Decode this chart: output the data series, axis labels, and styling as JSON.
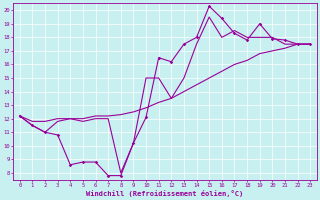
{
  "xlabel": "Windchill (Refroidissement éolien,°C)",
  "bg_color": "#c8f0f0",
  "line_color": "#990099",
  "xlim": [
    -0.5,
    23.5
  ],
  "ylim": [
    7.5,
    20.5
  ],
  "xticks": [
    0,
    1,
    2,
    3,
    4,
    5,
    6,
    7,
    8,
    9,
    10,
    11,
    12,
    13,
    14,
    15,
    16,
    17,
    18,
    19,
    20,
    21,
    22,
    23
  ],
  "yticks": [
    8,
    9,
    10,
    11,
    12,
    13,
    14,
    15,
    16,
    17,
    18,
    19,
    20
  ],
  "line_markers_x": [
    0,
    1,
    2,
    3,
    4,
    5,
    6,
    7,
    8,
    9,
    10,
    11,
    12,
    13,
    14,
    15,
    16,
    17,
    18,
    19,
    20,
    21,
    22,
    23
  ],
  "line_markers_y": [
    12.2,
    11.5,
    11.0,
    10.8,
    8.6,
    8.8,
    8.8,
    7.8,
    7.8,
    10.2,
    12.1,
    16.5,
    16.2,
    17.5,
    18.0,
    20.3,
    19.4,
    18.3,
    17.8,
    19.0,
    17.9,
    17.8,
    17.5,
    17.5
  ],
  "line_straight_x": [
    0,
    1,
    2,
    3,
    4,
    5,
    6,
    7,
    8,
    9,
    10,
    11,
    12,
    13,
    14,
    15,
    16,
    17,
    18,
    19,
    20,
    21,
    22,
    23
  ],
  "line_straight_y": [
    12.2,
    11.8,
    11.8,
    12.0,
    12.0,
    12.0,
    12.2,
    12.2,
    12.3,
    12.5,
    12.8,
    13.2,
    13.5,
    14.0,
    14.5,
    15.0,
    15.5,
    16.0,
    16.3,
    16.8,
    17.0,
    17.2,
    17.5,
    17.5
  ],
  "line_wavy_x": [
    0,
    1,
    2,
    3,
    4,
    5,
    6,
    7,
    8,
    9,
    10,
    11,
    12,
    13,
    14,
    15,
    16,
    17,
    18,
    19,
    20,
    21,
    22,
    23
  ],
  "line_wavy_y": [
    12.2,
    11.5,
    11.0,
    11.8,
    12.0,
    11.8,
    12.0,
    12.0,
    8.0,
    10.2,
    15.0,
    15.0,
    13.5,
    15.0,
    17.5,
    19.5,
    18.0,
    18.5,
    18.0,
    18.0,
    18.0,
    17.5,
    17.5,
    17.5
  ]
}
